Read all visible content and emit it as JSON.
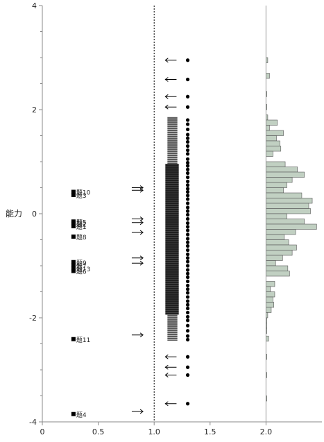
{
  "chart_data": {
    "type": "scatter",
    "title": "",
    "ylabel": "能力",
    "xlabel": "",
    "xlim": [
      0,
      2.5
    ],
    "ylim": [
      -4,
      4
    ],
    "x_ticks": [
      "0",
      "0.5",
      "1.0",
      "1.5",
      "2.0"
    ],
    "y_ticks": [
      "4",
      "2",
      "0",
      "-2",
      "-4"
    ],
    "reference_line_x": 1.0,
    "divider_x": 2.0,
    "items": [
      {
        "label": "题10",
        "difficulty": 0.42
      },
      {
        "label": "题3",
        "difficulty": 0.36
      },
      {
        "label": "题5",
        "difficulty": -0.15
      },
      {
        "label": "题2",
        "difficulty": -0.19
      },
      {
        "label": "题1",
        "difficulty": -0.24
      },
      {
        "label": "题8",
        "difficulty": -0.44
      },
      {
        "label": "题9",
        "difficulty": -0.93
      },
      {
        "label": "题7",
        "difficulty": -0.99
      },
      {
        "label": "题13",
        "difficulty": -1.05
      },
      {
        "label": "题6",
        "difficulty": -1.1
      },
      {
        "label": "题11",
        "difficulty": -2.41
      },
      {
        "label": "题4",
        "difficulty": -3.85
      }
    ],
    "right_arrows": [
      0.5,
      0.45,
      -0.1,
      -0.17,
      -0.36,
      -0.85,
      -0.95,
      -2.33,
      -3.8
    ],
    "person_abilities": [
      2.95,
      2.58,
      2.25,
      2.05,
      1.8,
      1.72,
      1.62,
      1.52,
      1.45,
      1.38,
      1.3,
      1.22,
      1.15,
      1.05,
      0.98,
      0.92,
      0.85,
      0.78,
      0.7,
      0.62,
      0.55,
      0.48,
      0.42,
      0.35,
      0.28,
      0.2,
      0.12,
      0.05,
      -0.02,
      -0.1,
      -0.18,
      -0.25,
      -0.32,
      -0.4,
      -0.48,
      -0.55,
      -0.62,
      -0.7,
      -0.78,
      -0.85,
      -0.92,
      -1.0,
      -1.08,
      -1.15,
      -1.22,
      -1.3,
      -1.38,
      -1.45,
      -1.52,
      -1.6,
      -1.68,
      -1.75,
      -1.82,
      -1.9,
      -1.98,
      -2.05,
      -2.15,
      -2.25,
      -2.35,
      -2.42,
      -2.75,
      -2.95,
      -3.1,
      -3.65
    ],
    "histogram": {
      "bin_width": 0.1,
      "bins": [
        {
          "y": 2.95,
          "count": 0.02
        },
        {
          "y": 2.65,
          "count": 0.04
        },
        {
          "y": 2.3,
          "count": 0.01
        },
        {
          "y": 2.05,
          "count": 0.01
        },
        {
          "y": 1.85,
          "count": 0.02
        },
        {
          "y": 1.75,
          "count": 0.13
        },
        {
          "y": 1.65,
          "count": 0.04
        },
        {
          "y": 1.55,
          "count": 0.2
        },
        {
          "y": 1.45,
          "count": 0.12
        },
        {
          "y": 1.35,
          "count": 0.16
        },
        {
          "y": 1.25,
          "count": 0.17
        },
        {
          "y": 1.15,
          "count": 0.08
        },
        {
          "y": 0.95,
          "count": 0.22
        },
        {
          "y": 0.85,
          "count": 0.36
        },
        {
          "y": 0.75,
          "count": 0.44
        },
        {
          "y": 0.65,
          "count": 0.3
        },
        {
          "y": 0.55,
          "count": 0.24
        },
        {
          "y": 0.45,
          "count": 0.2
        },
        {
          "y": 0.35,
          "count": 0.41
        },
        {
          "y": 0.25,
          "count": 0.53
        },
        {
          "y": 0.15,
          "count": 0.49
        },
        {
          "y": 0.05,
          "count": 0.51
        },
        {
          "y": -0.05,
          "count": 0.24
        },
        {
          "y": -0.15,
          "count": 0.44
        },
        {
          "y": -0.25,
          "count": 0.58
        },
        {
          "y": -0.35,
          "count": 0.34
        },
        {
          "y": -0.45,
          "count": 0.21
        },
        {
          "y": -0.55,
          "count": 0.26
        },
        {
          "y": -0.65,
          "count": 0.35
        },
        {
          "y": -0.75,
          "count": 0.3
        },
        {
          "y": -0.85,
          "count": 0.19
        },
        {
          "y": -0.95,
          "count": 0.11
        },
        {
          "y": -1.05,
          "count": 0.25
        },
        {
          "y": -1.15,
          "count": 0.27
        },
        {
          "y": -1.35,
          "count": 0.1
        },
        {
          "y": -1.45,
          "count": 0.05
        },
        {
          "y": -1.55,
          "count": 0.1
        },
        {
          "y": -1.65,
          "count": 0.08
        },
        {
          "y": -1.75,
          "count": 0.09
        },
        {
          "y": -1.85,
          "count": 0.06
        },
        {
          "y": -1.95,
          "count": 0.02
        },
        {
          "y": -2.05,
          "count": 0.01
        },
        {
          "y": -2.15,
          "count": 0.01
        },
        {
          "y": -2.25,
          "count": 0.01
        },
        {
          "y": -2.4,
          "count": 0.03
        },
        {
          "y": -2.75,
          "count": 0.01
        },
        {
          "y": -3.1,
          "count": 0.01
        },
        {
          "y": -3.55,
          "count": 0.01
        }
      ]
    },
    "colors": {
      "histogram_fill": "#c1d0c2",
      "histogram_stroke": "#555555",
      "axis": "#888888",
      "marks": "#000000"
    }
  }
}
